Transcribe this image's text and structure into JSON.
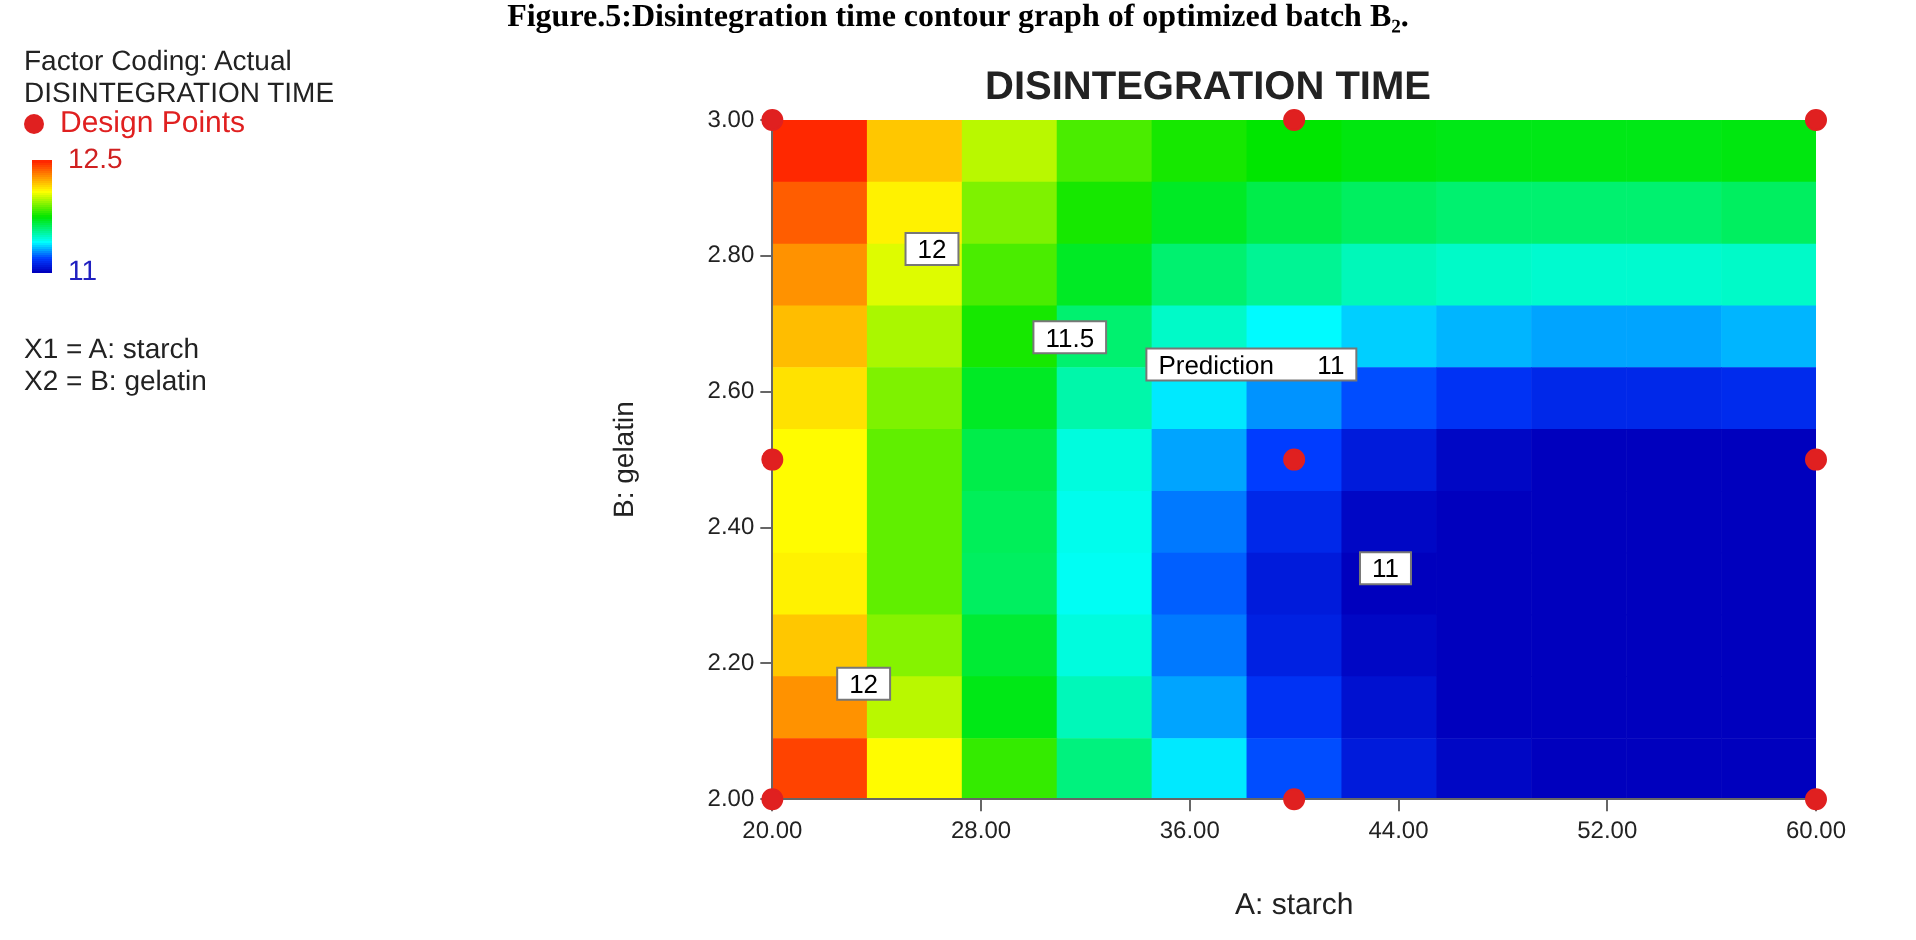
{
  "chart_data": [
    {
      "type": "heatmap",
      "categories": [
        null,
        null,
        null,
        null,
        null,
        null,
        null,
        null,
        null,
        null,
        null
      ],
      "y_categories": [
        null,
        null,
        null,
        null,
        null,
        null,
        null,
        null,
        null,
        null,
        null
      ],
      "cells": [
        [
          12.5,
          12.2,
          12.0,
          11.85,
          11.78,
          11.75,
          11.73,
          11.72,
          11.72,
          11.72,
          11.73
        ],
        [
          12.4,
          12.12,
          11.92,
          11.78,
          11.7,
          11.65,
          11.62,
          11.6,
          11.6,
          11.6,
          11.62
        ],
        [
          12.3,
          12.05,
          11.85,
          11.7,
          11.6,
          11.55,
          11.5,
          11.48,
          11.47,
          11.47,
          11.48
        ],
        [
          12.22,
          11.98,
          11.78,
          11.6,
          11.48,
          11.4,
          11.35,
          11.32,
          11.3,
          11.3,
          11.32
        ],
        [
          12.15,
          11.92,
          11.7,
          11.52,
          11.38,
          11.28,
          11.2,
          11.15,
          11.12,
          11.12,
          11.13
        ],
        [
          12.1,
          11.88,
          11.65,
          11.45,
          11.3,
          11.18,
          11.08,
          11.02,
          11.0,
          11.0,
          11.0
        ],
        [
          12.1,
          11.88,
          11.63,
          11.43,
          11.25,
          11.12,
          11.02,
          11.0,
          11.0,
          11.0,
          11.0
        ],
        [
          12.12,
          11.88,
          11.62,
          11.42,
          11.22,
          11.08,
          11.0,
          11.0,
          11.0,
          11.0,
          11.0
        ],
        [
          12.2,
          11.93,
          11.68,
          11.45,
          11.25,
          11.1,
          11.02,
          11.0,
          11.0,
          11.0,
          11.0
        ],
        [
          12.3,
          12.0,
          11.72,
          11.5,
          11.3,
          11.15,
          11.05,
          11.0,
          11.0,
          11.0,
          11.0
        ],
        [
          12.45,
          12.1,
          11.82,
          11.58,
          11.38,
          11.2,
          11.08,
          11.02,
          11.0,
          11.0,
          11.0
        ]
      ],
      "clim": [
        11,
        12.5
      ],
      "cticks": [
        12.5,
        11
      ],
      "tick_labels": false
    },
    {
      "type": "scatter",
      "title": "DISINTEGRATION TIME",
      "subtitle": "Figure.5:Disintegration time contour graph of optimized batch B₂.",
      "xlabel": "A: starch",
      "ylabel": "B: gelatin",
      "legend_title": "DISINTEGRATION TIME",
      "xlim": [
        20,
        60
      ],
      "xticks": [
        {
          "value": 20,
          "label": "20.00"
        },
        {
          "value": 28,
          "label": "28.00"
        },
        {
          "value": 36,
          "label": "36.00"
        },
        {
          "value": 44,
          "label": "44.00"
        },
        {
          "value": 52,
          "label": "52.00"
        },
        {
          "value": 60,
          "label": "60.00"
        }
      ],
      "ylim": [
        2,
        3
      ],
      "yticks": [
        {
          "value": 2,
          "label": "2.00"
        },
        {
          "value": 2.2,
          "label": "2.20"
        },
        {
          "value": 2.4,
          "label": "2.40"
        },
        {
          "value": 2.6,
          "label": "2.60"
        },
        {
          "value": 2.8,
          "label": "2.80"
        },
        {
          "value": 3,
          "label": "3.00"
        }
      ],
      "series": [
        {
          "name": "Design Points",
          "type": "scatter",
          "color": "#e02020",
          "x": [
            20,
            20,
            20,
            40,
            40,
            40,
            60,
            60,
            60
          ],
          "values": [
            2,
            2.5,
            3,
            2,
            2.5,
            3,
            2,
            2.5,
            3
          ]
        }
      ],
      "marker": "circle",
      "legend": "left",
      "grid": false,
      "annotations": [
        "Factor Coding: Actual",
        "X1 = A: starch",
        "X2 = B: gelatin",
        "12",
        "11.5",
        "12",
        "11",
        "Prediction      11"
      ]
    }
  ]
}
